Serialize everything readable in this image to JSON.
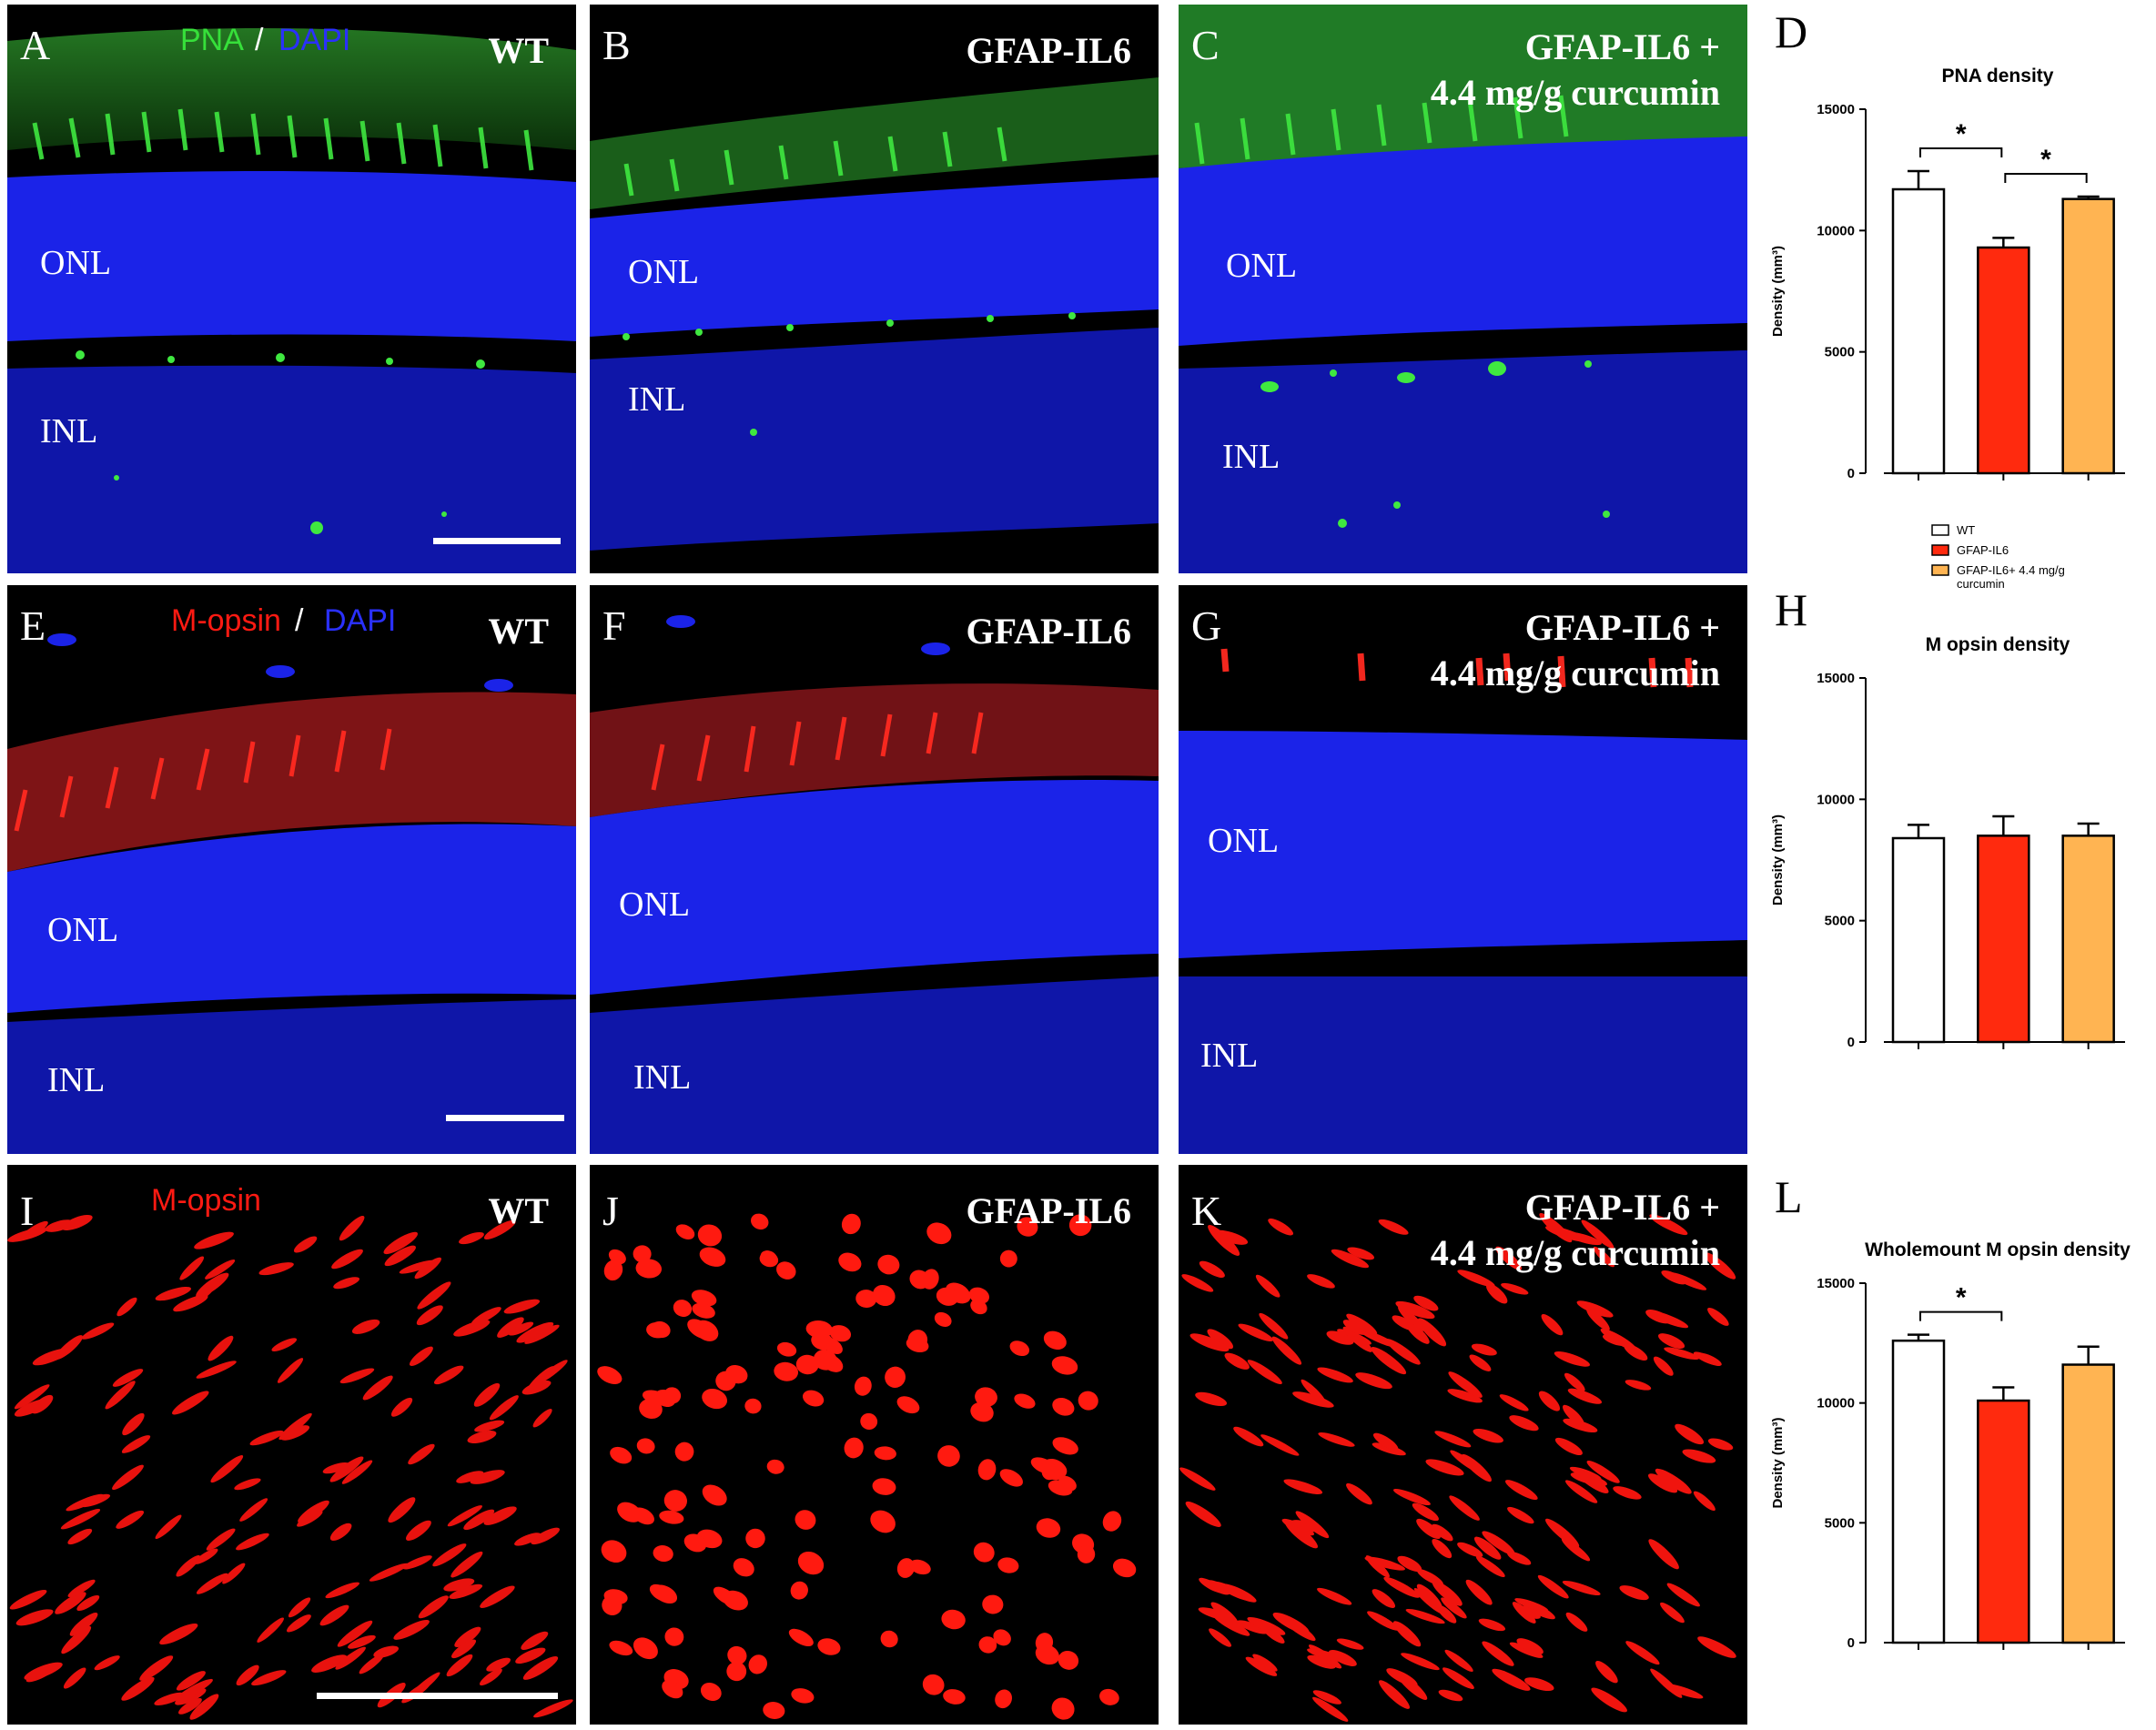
{
  "panels": {
    "A": {
      "letter": "A",
      "group": "WT",
      "stain_a": "PNA",
      "stain_sep": "/",
      "stain_b": "DAPI",
      "layer1": "ONL",
      "layer2": "INL"
    },
    "B": {
      "letter": "B",
      "group": "GFAP-IL6",
      "layer1": "ONL",
      "layer2": "INL"
    },
    "C": {
      "letter": "C",
      "group_line1": "GFAP-IL6 +",
      "group_line2": "4.4 mg/g curcumin",
      "layer1": "ONL",
      "layer2": "INL"
    },
    "E": {
      "letter": "E",
      "group": "WT",
      "stain_a": "M-opsin",
      "stain_sep": "/",
      "stain_b": "DAPI",
      "layer1": "ONL",
      "layer2": "INL"
    },
    "F": {
      "letter": "F",
      "group": "GFAP-IL6",
      "layer1": "ONL",
      "layer2": "INL"
    },
    "G": {
      "letter": "G",
      "group_line1": "GFAP-IL6 +",
      "group_line2": "4.4 mg/g curcumin",
      "layer1": "ONL",
      "layer2": "INL"
    },
    "I": {
      "letter": "I",
      "group": "WT",
      "stain_a": "M-opsin"
    },
    "J": {
      "letter": "J",
      "group": "GFAP-IL6"
    },
    "K": {
      "letter": "K",
      "group_line1": "GFAP-IL6 +",
      "group_line2": "4.4 mg/g curcumin"
    }
  },
  "colors": {
    "wt": "#ffffff",
    "il6": "#ff2a0e",
    "cur": "#ffb452",
    "green": "#36e03a",
    "blue": "#1a22ff",
    "red": "#ff1a12"
  },
  "chart_data": [
    {
      "letter": "D",
      "type": "bar",
      "title": "PNA density",
      "ylabel": "Density (mm³)",
      "ylim": [
        0,
        15000
      ],
      "yticks": [
        "0",
        "5000",
        "10000",
        "15000"
      ],
      "categories": [
        "WT",
        "GFAP-IL6",
        "GFAP-IL6+ 4.4 mg/g curcumin"
      ],
      "values": [
        11700,
        9300,
        11300
      ],
      "errors": [
        750,
        400,
        100
      ],
      "significance": [
        {
          "from": 0,
          "to": 1,
          "label": "*"
        },
        {
          "from": 1,
          "to": 2,
          "label": "*"
        }
      ]
    },
    {
      "letter": "H",
      "type": "bar",
      "title": "M opsin density",
      "ylabel": "Density (mm³)",
      "ylim": [
        0,
        15000
      ],
      "yticks": [
        "0",
        "5000",
        "10000",
        "15000"
      ],
      "categories": [
        "WT",
        "GFAP-IL6",
        "GFAP-IL6+ 4.4 mg/g curcumin"
      ],
      "values": [
        8400,
        8500,
        8500
      ],
      "errors": [
        550,
        800,
        500
      ],
      "significance": []
    },
    {
      "letter": "L",
      "type": "bar",
      "title": "Wholemount M opsin density",
      "ylabel": "Density (mm³)",
      "ylim": [
        0,
        15000
      ],
      "yticks": [
        "0",
        "5000",
        "10000",
        "15000"
      ],
      "categories": [
        "WT",
        "GFAP-IL6",
        "GFAP-IL6+ 4.4 mg/g curcumin"
      ],
      "values": [
        12600,
        10100,
        11600
      ],
      "errors": [
        250,
        550,
        750
      ],
      "significance": [
        {
          "from": 0,
          "to": 1,
          "label": "*"
        }
      ]
    }
  ],
  "legend": {
    "items": [
      {
        "label": "WT",
        "color": "#ffffff"
      },
      {
        "label": "GFAP-IL6",
        "color": "#ff2a0e"
      },
      {
        "label": "GFAP-IL6+ 4.4 mg/g",
        "label2": "curcumin",
        "color": "#ffb452"
      }
    ]
  }
}
